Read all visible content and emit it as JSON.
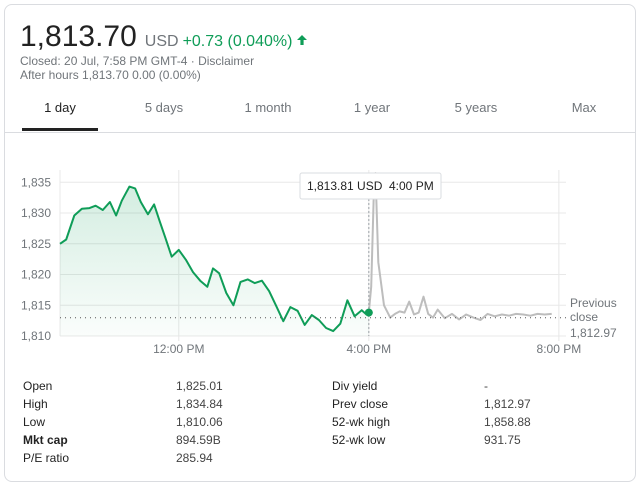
{
  "header": {
    "price": "1,813.70",
    "currency": "USD",
    "change": "+0.73 (0.040%)",
    "closed_line": "Closed: 20 Jul, 7:58 PM GMT-4 · Disclaimer",
    "after_hours_line": "After hours 1,813.70 0.00 (0.00%)"
  },
  "tabs": [
    {
      "label": "1 day"
    },
    {
      "label": "5 days"
    },
    {
      "label": "1 month"
    },
    {
      "label": "1 year"
    },
    {
      "label": "5 years"
    },
    {
      "label": "Max"
    }
  ],
  "colors": {
    "up": "#0f9d58",
    "after_hours": "#bdbdbd",
    "grid": "#e8e8e8"
  },
  "chart_data": {
    "type": "line",
    "x_unit": "hours",
    "xticks": [
      {
        "value": 12,
        "label": "12:00 PM"
      },
      {
        "value": 16,
        "label": "4:00 PM"
      },
      {
        "value": 20,
        "label": "8:00 PM"
      }
    ],
    "yticks": [
      1810,
      1815,
      1820,
      1825,
      1830,
      1835
    ],
    "yticks_labels": [
      "1,810",
      "1,815",
      "1,820",
      "1,825",
      "1,830",
      "1,835"
    ],
    "ylim": [
      1810,
      1837
    ],
    "xlim": [
      9.5,
      20.15
    ],
    "grid": true,
    "tooltip": {
      "value": "1,813.81 USD",
      "time": "4:00 PM"
    },
    "previous_close": {
      "value": 1812.97,
      "label_line1": "Previous",
      "label_line2": "close",
      "value_label": "1,812.97"
    },
    "series": [
      {
        "x": [
          9.5,
          9.63,
          9.8,
          9.96,
          10.12,
          10.25,
          10.4,
          10.55,
          10.68,
          10.8,
          10.96,
          11.08,
          11.2,
          11.35,
          11.48,
          11.6,
          11.72,
          11.85,
          12.0,
          12.15,
          12.3,
          12.45,
          12.6,
          12.72,
          12.85,
          13.0,
          13.15,
          13.3,
          13.45,
          13.6,
          13.75,
          13.9,
          14.05,
          14.2,
          14.35,
          14.5,
          14.65,
          14.8,
          14.95,
          15.1,
          15.25,
          15.4,
          15.55,
          15.7,
          15.85,
          15.95,
          16.0
        ],
        "y": [
          1825.0,
          1825.7,
          1829.6,
          1830.7,
          1830.8,
          1831.2,
          1830.5,
          1831.8,
          1829.6,
          1832.0,
          1834.3,
          1834.0,
          1831.8,
          1829.8,
          1831.4,
          1828.6,
          1825.9,
          1822.9,
          1824.0,
          1822.4,
          1820.4,
          1819.0,
          1818.0,
          1821.0,
          1820.2,
          1817.0,
          1815.0,
          1818.8,
          1819.2,
          1818.6,
          1819.0,
          1817.3,
          1814.9,
          1812.4,
          1814.7,
          1814.1,
          1811.8,
          1813.4,
          1812.6,
          1811.3,
          1810.8,
          1812.0,
          1815.8,
          1813.2,
          1814.2,
          1813.5,
          1813.81
        ]
      },
      {
        "x": [
          16.0,
          16.05,
          16.1,
          16.14,
          16.2,
          16.32,
          16.45,
          16.55,
          16.65,
          16.75,
          16.85,
          16.95,
          17.05,
          17.15,
          17.25,
          17.35,
          17.45,
          17.6,
          17.75,
          17.9,
          18.05,
          18.2,
          18.35,
          18.5,
          18.65,
          18.8,
          18.95,
          19.1,
          19.25,
          19.4,
          19.55,
          19.7,
          19.85
        ],
        "y": [
          1813.81,
          1818.0,
          1832.0,
          1836.5,
          1822.0,
          1815.0,
          1813.0,
          1813.6,
          1814.0,
          1813.8,
          1815.6,
          1813.5,
          1813.8,
          1816.4,
          1813.6,
          1813.0,
          1814.3,
          1812.9,
          1813.6,
          1812.7,
          1813.5,
          1813.0,
          1812.6,
          1813.6,
          1813.2,
          1813.5,
          1813.3,
          1813.6,
          1813.5,
          1813.3,
          1813.6,
          1813.5,
          1813.6
        ]
      }
    ]
  },
  "stats": [
    {
      "label": "Open",
      "value": "1,825.01",
      "bold": false
    },
    {
      "label": "High",
      "value": "1,834.84",
      "bold": false
    },
    {
      "label": "Low",
      "value": "1,810.06",
      "bold": false
    },
    {
      "label": "Mkt cap",
      "value": "894.59B",
      "bold": true
    },
    {
      "label": "P/E ratio",
      "value": "285.94",
      "bold": false
    },
    {
      "label": "Div yield",
      "value": "-",
      "bold": false
    },
    {
      "label": "Prev close",
      "value": "1,812.97",
      "bold": false
    },
    {
      "label": "52-wk high",
      "value": "1,858.88",
      "bold": false
    },
    {
      "label": "52-wk low",
      "value": "931.75",
      "bold": false
    }
  ]
}
